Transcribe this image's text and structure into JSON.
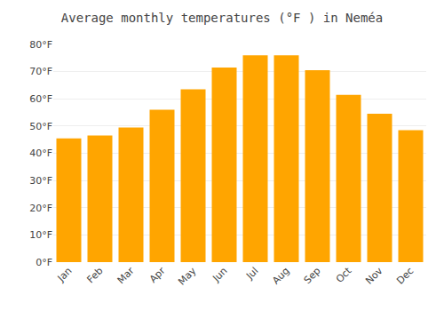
{
  "chart_data": {
    "type": "bar",
    "title": "Average monthly temperatures (°F ) in Neméa",
    "categories": [
      "Jan",
      "Feb",
      "Mar",
      "Apr",
      "May",
      "Jun",
      "Jul",
      "Aug",
      "Sep",
      "Oct",
      "Nov",
      "Dec"
    ],
    "values": [
      45.5,
      46.5,
      49.5,
      56.0,
      63.5,
      71.5,
      76.0,
      76.0,
      70.5,
      61.5,
      54.5,
      48.5
    ],
    "color": "#FFA500",
    "ylim": [
      0,
      80
    ],
    "yticks": [
      {
        "value": 0,
        "label": "0°F"
      },
      {
        "value": 10,
        "label": "10°F"
      },
      {
        "value": 20,
        "label": "20°F"
      },
      {
        "value": 30,
        "label": "30°F"
      },
      {
        "value": 40,
        "label": "40°F"
      },
      {
        "value": 50,
        "label": "50°F"
      },
      {
        "value": 60,
        "label": "60°F"
      },
      {
        "value": 70,
        "label": "70°F"
      },
      {
        "value": 80,
        "label": "80°F"
      }
    ],
    "grid": true
  }
}
